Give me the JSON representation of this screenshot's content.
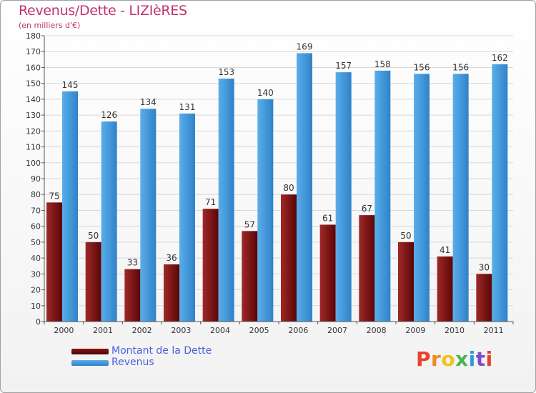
{
  "header": {
    "title": "Revenus/Dette - LIZIèRES",
    "subtitle": "(en milliers d'€)"
  },
  "colors": {
    "title": "#c0336e",
    "dette_series": "#7a1010",
    "revenus_series": "#3d93d8",
    "legend_text": "#4a5fe0",
    "grid": "#d8d8d8"
  },
  "chart_data": {
    "type": "bar",
    "categories": [
      "2000",
      "2001",
      "2002",
      "2003",
      "2004",
      "2005",
      "2006",
      "2007",
      "2008",
      "2009",
      "2010",
      "2011"
    ],
    "series": [
      {
        "name": "Montant de la Dette",
        "values": [
          75,
          50,
          33,
          36,
          71,
          57,
          80,
          61,
          67,
          50,
          41,
          30
        ]
      },
      {
        "name": "Revenus",
        "values": [
          145,
          126,
          134,
          131,
          153,
          140,
          169,
          157,
          158,
          156,
          156,
          162
        ]
      }
    ],
    "ylim": [
      0,
      180
    ],
    "yticks": [
      0,
      10,
      20,
      30,
      40,
      50,
      60,
      70,
      80,
      90,
      100,
      110,
      120,
      130,
      140,
      150,
      160,
      170,
      180
    ],
    "grid": true,
    "legend_position": "bottom-left"
  },
  "legend": {
    "items": [
      {
        "label": "Montant de la Dette"
      },
      {
        "label": "Revenus"
      }
    ]
  },
  "logo": {
    "letters": [
      "P",
      "r",
      "o",
      "x",
      "i",
      "t",
      "i"
    ],
    "colors": [
      "#e8412c",
      "#f08a1c",
      "#f2c21a",
      "#4bb64a",
      "#2f9be0",
      "#7a4fc8",
      "#e8412c"
    ]
  }
}
